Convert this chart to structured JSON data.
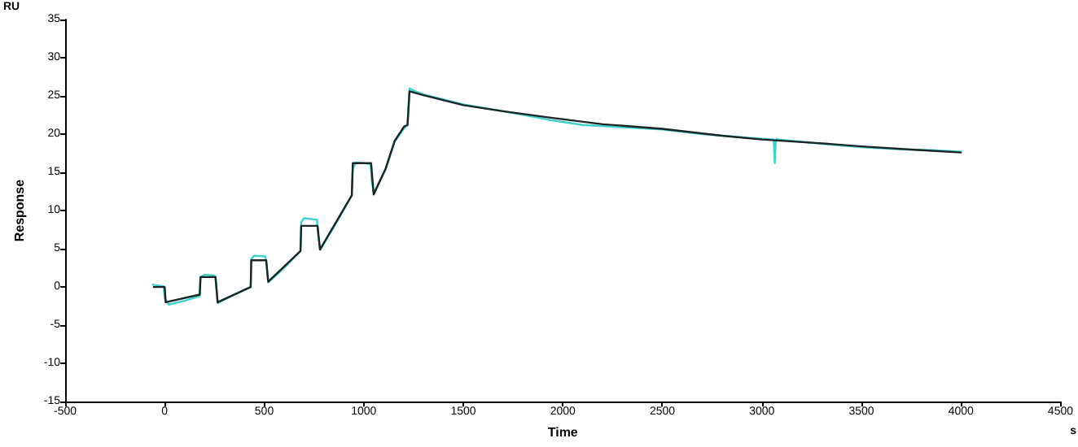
{
  "chart_data": {
    "type": "line",
    "xlabel": "Time",
    "ylabel": "Response",
    "annotations": [
      "RU",
      "s"
    ],
    "xlim": [
      -500,
      4500
    ],
    "xticks": [
      -500,
      0,
      500,
      1000,
      1500,
      2000,
      2500,
      3000,
      3500,
      4000,
      4500
    ],
    "ylim": [
      -15,
      35
    ],
    "yticks": [
      -15,
      -10,
      -5,
      0,
      5,
      10,
      15,
      20,
      25,
      30,
      35
    ],
    "grid": false,
    "marker": "none",
    "line_style": "solid",
    "series": [
      {
        "color": "#40d0d0",
        "x": [
          -60,
          -5,
          0,
          20,
          100,
          176,
          180,
          200,
          250,
          256,
          266,
          350,
          432,
          435,
          450,
          505,
          512,
          520,
          600,
          682,
          686,
          700,
          765,
          770,
          782,
          860,
          940,
          945,
          960,
          1035,
          1040,
          1050,
          1110,
          1155,
          1203,
          1220,
          1230,
          1250,
          1300,
          1500,
          1700,
          1926,
          2100,
          2300,
          2500,
          2700,
          2900,
          3060,
          3065,
          3070,
          3075,
          3080,
          3200,
          3400,
          3500,
          3700,
          3850,
          4000
        ],
        "values": [
          0.3,
          0.1,
          -1.5,
          -2.3,
          -1.8,
          -1.2,
          1.3,
          1.6,
          1.5,
          1.3,
          -2.1,
          -1.0,
          0.0,
          3.7,
          4.1,
          4.0,
          3.0,
          0.6,
          2.5,
          4.7,
          8.5,
          9.0,
          8.8,
          7.0,
          4.9,
          8.3,
          12.0,
          15.5,
          16.3,
          16.1,
          14.0,
          12.3,
          15.4,
          19.0,
          20.8,
          21.2,
          26.0,
          25.7,
          25.2,
          23.9,
          23.0,
          21.9,
          21.2,
          20.9,
          20.6,
          20.0,
          19.6,
          19.3,
          16.2,
          19.2,
          19.4,
          19.3,
          19.0,
          18.5,
          18.3,
          18.0,
          17.9,
          17.7
        ]
      },
      {
        "color": "#1c2626",
        "x": [
          -55,
          0,
          5,
          176,
          180,
          255,
          266,
          432,
          435,
          510,
          520,
          682,
          686,
          768,
          780,
          940,
          945,
          1037,
          1050,
          1110,
          1155,
          1203,
          1220,
          1230,
          1300,
          1500,
          1700,
          1926,
          2200,
          2500,
          2800,
          3000,
          3300,
          3500,
          3800,
          4000
        ],
        "values": [
          0.0,
          0.0,
          -2.0,
          -1.0,
          1.3,
          1.3,
          -2.0,
          0.0,
          3.5,
          3.5,
          0.7,
          4.7,
          8.0,
          8.0,
          4.9,
          12.0,
          16.2,
          16.2,
          12.1,
          15.5,
          19.1,
          21.0,
          21.2,
          25.6,
          25.1,
          23.8,
          23.0,
          22.2,
          21.3,
          20.7,
          19.8,
          19.3,
          18.8,
          18.4,
          17.9,
          17.6
        ]
      }
    ]
  }
}
